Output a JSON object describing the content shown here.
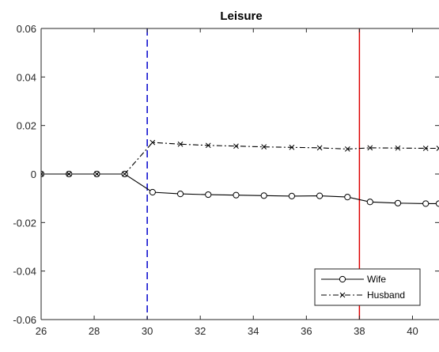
{
  "chart_data": {
    "type": "line",
    "title": "Leisure",
    "xlabel": "",
    "ylabel": "",
    "xlim": [
      26,
      41
    ],
    "ylim": [
      -0.06,
      0.06
    ],
    "xticks": [
      26,
      28,
      30,
      32,
      34,
      36,
      38,
      40
    ],
    "xtick_labels": [
      "26",
      "28",
      "30",
      "32",
      "34",
      "36",
      "38",
      "40"
    ],
    "yticks": [
      -0.06,
      -0.04,
      -0.02,
      0,
      0.02,
      0.04,
      0.06
    ],
    "ytick_labels": [
      "-0.06",
      "-0.04",
      "-0.02",
      "0",
      "0.02",
      "0.04",
      "0.06"
    ],
    "grid": false,
    "legend_position": "bottom-right",
    "series": [
      {
        "name": "Wife",
        "line_style": "solid",
        "marker": "circle",
        "color": "#000000",
        "x": [
          26,
          27.05,
          28.1,
          29.15,
          30.2,
          31.25,
          32.3,
          33.35,
          34.4,
          35.45,
          36.5,
          37.55,
          38.4,
          39.45,
          40.5,
          41
        ],
        "y": [
          0.0,
          0.0,
          0.0,
          0.0,
          -0.0075,
          -0.0082,
          -0.0085,
          -0.0087,
          -0.0089,
          -0.0091,
          -0.009,
          -0.0095,
          -0.0115,
          -0.012,
          -0.0122,
          -0.0122
        ]
      },
      {
        "name": "Husband",
        "line_style": "dashdot",
        "marker": "x",
        "color": "#000000",
        "x": [
          26,
          27.05,
          28.1,
          29.15,
          30.2,
          31.25,
          32.3,
          33.35,
          34.4,
          35.45,
          36.5,
          37.55,
          38.4,
          39.45,
          40.5,
          41
        ],
        "y": [
          0.0,
          0.0,
          0.0,
          0.0,
          0.013,
          0.0123,
          0.0118,
          0.0115,
          0.0112,
          0.011,
          0.0108,
          0.0103,
          0.0108,
          0.0107,
          0.0106,
          0.0106
        ]
      }
    ],
    "vertical_lines": [
      {
        "x": 30,
        "color": "#0000cc",
        "style": "dashed"
      },
      {
        "x": 38,
        "color": "#dd0000",
        "style": "solid"
      }
    ]
  }
}
